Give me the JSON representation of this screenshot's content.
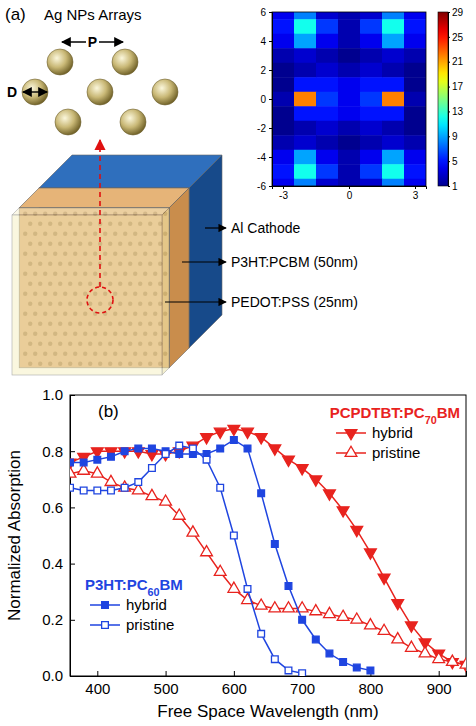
{
  "diagram": {
    "label": "(a)",
    "title": "Ag NPs Arrays",
    "dimensions": [
      "D",
      "P"
    ],
    "layers": [
      "Al Cathode",
      "P3HT:PCBM (50nm)",
      "PEDOT:PSS (25nm)"
    ]
  },
  "chart_data": [
    {
      "type": "heatmap",
      "x": [
        -3,
        -2,
        -1,
        0,
        1,
        2,
        3
      ],
      "y": [
        6,
        5,
        4,
        3,
        2,
        1,
        0,
        -1,
        -2,
        -3,
        -4,
        -5,
        -6
      ],
      "cells": [
        [
          4,
          8,
          3,
          2,
          3,
          8,
          4
        ],
        [
          5,
          12,
          6,
          2,
          6,
          12,
          5
        ],
        [
          4,
          9,
          4,
          2,
          4,
          9,
          4
        ],
        [
          2,
          3,
          2,
          1,
          2,
          3,
          2
        ],
        [
          1,
          2,
          3,
          2,
          3,
          2,
          1
        ],
        [
          1,
          5,
          5,
          4,
          5,
          5,
          1
        ],
        [
          2,
          22,
          6,
          4,
          6,
          22,
          2
        ],
        [
          1,
          5,
          5,
          4,
          5,
          5,
          1
        ],
        [
          1,
          2,
          3,
          2,
          3,
          2,
          1
        ],
        [
          2,
          3,
          2,
          1,
          2,
          3,
          2
        ],
        [
          4,
          9,
          4,
          2,
          4,
          9,
          4
        ],
        [
          5,
          12,
          6,
          2,
          6,
          12,
          5
        ],
        [
          4,
          8,
          3,
          2,
          3,
          8,
          4
        ]
      ],
      "xlim": [
        -3.5,
        3.5
      ],
      "ylim": [
        -6,
        6
      ],
      "xticks": [
        -3,
        0,
        3
      ],
      "yticks": [
        -6,
        -4,
        -2,
        0,
        2,
        4,
        6
      ],
      "colorbar": {
        "range": [
          1,
          29
        ],
        "ticks": [
          1,
          5,
          9,
          13,
          17,
          21,
          25,
          29
        ]
      }
    },
    {
      "type": "line",
      "annotations": [
        "(b)"
      ],
      "xlabel": "Free Space Wavelength (nm)",
      "ylabel": "Normalized Absorption",
      "xlim": [
        360,
        940
      ],
      "xticks": [
        400,
        500,
        600,
        700,
        800,
        900
      ],
      "ylim": [
        0,
        1
      ],
      "yticks": [
        {
          "value": 0,
          "label": "0.0"
        },
        {
          "value": 0.2,
          "label": "0.2"
        },
        {
          "value": 0.4,
          "label": "0.4"
        },
        {
          "value": 0.6,
          "label": "0.6"
        },
        {
          "value": 0.8,
          "label": "0.8"
        },
        {
          "value": 1,
          "label": "1.0"
        }
      ],
      "legend_groups": [
        {
          "title": "PCPDTBT:PC70BM",
          "legend": "top-right"
        },
        {
          "title": "P3HT:PC60BM",
          "legend": "bottom-left"
        }
      ],
      "series": [
        {
          "name": "hybrid",
          "group": "PCPDTBT:PC70BM",
          "color": "#e8231e",
          "marker": "filled-triangle-down",
          "x": [
            360,
            380,
            400,
            420,
            440,
            460,
            480,
            500,
            520,
            540,
            560,
            580,
            600,
            620,
            640,
            660,
            680,
            700,
            720,
            740,
            760,
            780,
            800,
            820,
            840,
            860,
            880,
            900,
            920,
            940
          ],
          "values": [
            0.76,
            0.78,
            0.8,
            0.8,
            0.8,
            0.8,
            0.79,
            0.79,
            0.8,
            0.82,
            0.85,
            0.87,
            0.88,
            0.87,
            0.85,
            0.81,
            0.77,
            0.74,
            0.7,
            0.65,
            0.59,
            0.52,
            0.44,
            0.35,
            0.26,
            0.18,
            0.12,
            0.08,
            0.05,
            0.04
          ]
        },
        {
          "name": "pristine",
          "group": "PCPDTBT:PC70BM",
          "color": "#e8231e",
          "marker": "open-triangle-up",
          "x": [
            360,
            380,
            400,
            420,
            440,
            460,
            480,
            500,
            520,
            540,
            560,
            580,
            600,
            620,
            640,
            660,
            680,
            700,
            720,
            740,
            760,
            780,
            800,
            820,
            840,
            860,
            880,
            900,
            920,
            940
          ],
          "values": [
            0.72,
            0.73,
            0.72,
            0.69,
            0.67,
            0.66,
            0.64,
            0.62,
            0.57,
            0.51,
            0.44,
            0.37,
            0.31,
            0.27,
            0.25,
            0.24,
            0.24,
            0.24,
            0.23,
            0.22,
            0.21,
            0.2,
            0.18,
            0.16,
            0.13,
            0.1,
            0.08,
            0.06,
            0.05,
            0.04
          ]
        },
        {
          "name": "hybrid",
          "group": "P3HT:PC60BM",
          "color": "#1f45e0",
          "marker": "filled-square",
          "x": [
            360,
            380,
            400,
            420,
            440,
            460,
            480,
            500,
            520,
            540,
            560,
            580,
            600,
            620,
            640,
            660,
            680,
            700,
            720,
            740,
            760,
            780,
            800
          ],
          "values": [
            0.76,
            0.76,
            0.77,
            0.78,
            0.8,
            0.81,
            0.81,
            0.8,
            0.79,
            0.79,
            0.79,
            0.81,
            0.84,
            0.81,
            0.65,
            0.47,
            0.32,
            0.2,
            0.13,
            0.08,
            0.05,
            0.03,
            0.02
          ]
        },
        {
          "name": "pristine",
          "group": "P3HT:PC60BM",
          "color": "#1f45e0",
          "marker": "open-square",
          "x": [
            360,
            380,
            400,
            420,
            440,
            460,
            480,
            500,
            520,
            540,
            560,
            580,
            600,
            620,
            640,
            660,
            680,
            700
          ],
          "values": [
            0.67,
            0.66,
            0.66,
            0.66,
            0.67,
            0.69,
            0.74,
            0.79,
            0.82,
            0.81,
            0.77,
            0.67,
            0.5,
            0.31,
            0.15,
            0.06,
            0.02,
            0.01
          ]
        }
      ]
    }
  ]
}
